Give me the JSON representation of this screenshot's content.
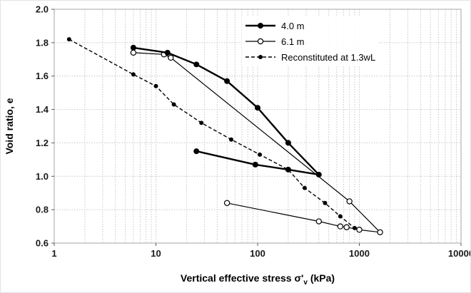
{
  "chart_data": {
    "type": "line",
    "title": "",
    "xlabel": "Vertical effective stress σ'v (kPa)",
    "xlabel_parts": {
      "prefix": "Vertical effective stress σ'",
      "sub": "v",
      "suffix": " (kPa)"
    },
    "ylabel": "Void ratio, e",
    "x_scale": "log",
    "xlim": [
      1,
      10000
    ],
    "ylim": [
      0.6,
      2.0
    ],
    "x_ticks": [
      1,
      10,
      100,
      1000,
      10000
    ],
    "y_ticks": [
      0.6,
      0.8,
      1.0,
      1.2,
      1.4,
      1.6,
      1.8,
      2.0
    ],
    "grid": "dashed light-gray, minor log verticals and 0.2 horizontals",
    "legend_position": "top-center",
    "series": [
      {
        "name": "4.0 m",
        "marker": "filled-circle",
        "line": "solid-thick",
        "color": "#000000",
        "points": [
          [
            6,
            1.77
          ],
          [
            13,
            1.74
          ],
          [
            25,
            1.67
          ],
          [
            50,
            1.57
          ],
          [
            100,
            1.41
          ],
          [
            200,
            1.2
          ],
          [
            400,
            1.01
          ],
          [
            200,
            1.04
          ],
          [
            95,
            1.07
          ],
          [
            25,
            1.15
          ]
        ]
      },
      {
        "name": "6.1 m",
        "marker": "open-circle",
        "line": "solid-thin",
        "color": "#000000",
        "points": [
          [
            6,
            1.74
          ],
          [
            12,
            1.73
          ],
          [
            14,
            1.71
          ],
          [
            800,
            0.85
          ],
          [
            1600,
            0.665
          ],
          [
            1000,
            0.68
          ],
          [
            750,
            0.695
          ],
          [
            650,
            0.7
          ],
          [
            400,
            0.73
          ],
          [
            50,
            0.84
          ]
        ]
      },
      {
        "name": "Reconstituted at 1.3wL",
        "marker": "small-filled-circle",
        "line": "dashed",
        "color": "#000000",
        "points": [
          [
            1.4,
            1.82
          ],
          [
            6,
            1.61
          ],
          [
            10,
            1.54
          ],
          [
            15,
            1.43
          ],
          [
            28,
            1.32
          ],
          [
            55,
            1.22
          ],
          [
            105,
            1.13
          ],
          [
            200,
            1.04
          ],
          [
            290,
            0.93
          ],
          [
            460,
            0.84
          ],
          [
            650,
            0.76
          ],
          [
            900,
            0.69
          ]
        ]
      }
    ]
  },
  "colors": {
    "line": "#000000",
    "grid": "#c6c6c6",
    "plot_border": "#a6a6a6",
    "tick": "#595959",
    "tick_label": "#1a1a1a",
    "background": "#ffffff"
  }
}
